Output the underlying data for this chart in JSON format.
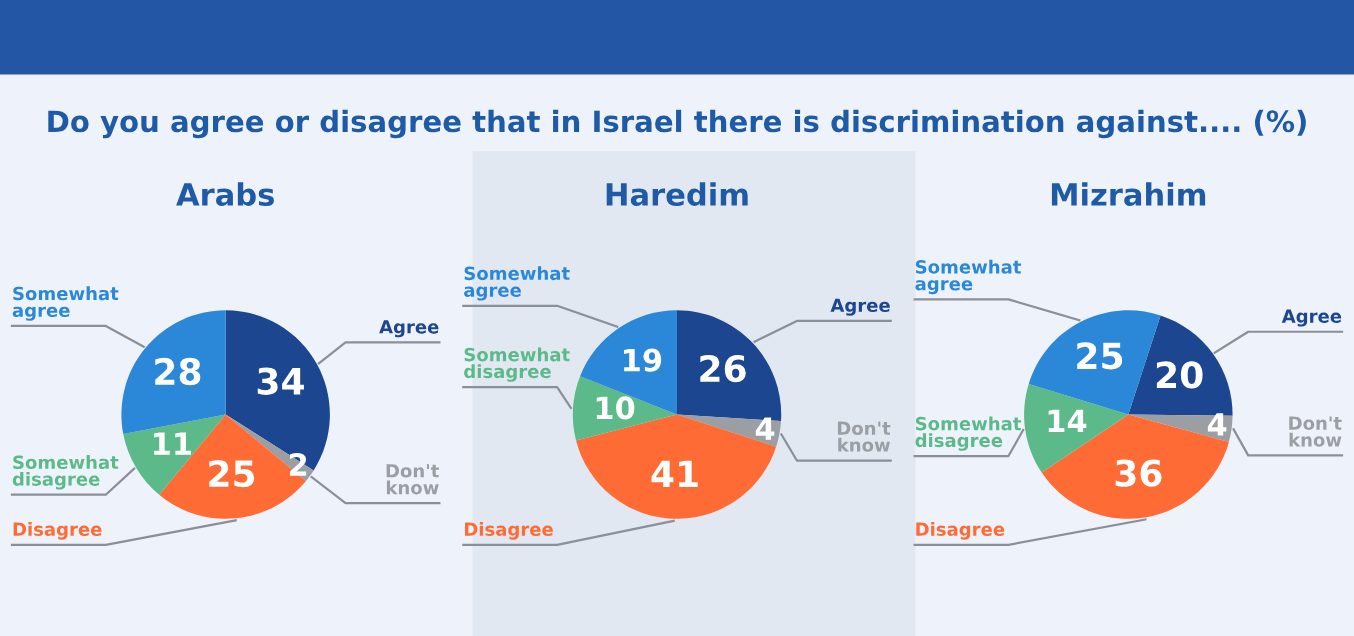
{
  "chart_data": [
    {
      "type": "pie",
      "title": "Arabs",
      "annotations": [
        "Do you agree or disagree that in Israel there is discrimination against.... (%)"
      ],
      "categories": [
        "Agree",
        "Don't know",
        "Disagree",
        "Somewhat disagree",
        "Somewhat agree"
      ],
      "values": [
        34,
        2,
        25,
        11,
        28
      ],
      "colors": [
        "#1d4690",
        "#9b9ea3",
        "#ff6b35",
        "#5cba8a",
        "#2b88d8"
      ],
      "data_labels": true
    },
    {
      "type": "pie",
      "title": "Haredim",
      "categories": [
        "Agree",
        "Don't know",
        "Disagree",
        "Somewhat disagree",
        "Somewhat agree"
      ],
      "values": [
        26,
        4,
        41,
        10,
        19
      ],
      "colors": [
        "#1d4690",
        "#9b9ea3",
        "#ff6b35",
        "#5cba8a",
        "#2b88d8"
      ],
      "data_labels": true
    },
    {
      "type": "pie",
      "title": "Mizrahim",
      "categories": [
        "Agree",
        "Don't know",
        "Disagree",
        "Somewhat disagree",
        "Somewhat agree"
      ],
      "values": [
        20,
        4,
        36,
        14,
        25
      ],
      "colors": [
        "#1d4690",
        "#9b9ea3",
        "#ff6b35",
        "#5cba8a",
        "#2b88d8"
      ],
      "data_labels": true
    }
  ]
}
